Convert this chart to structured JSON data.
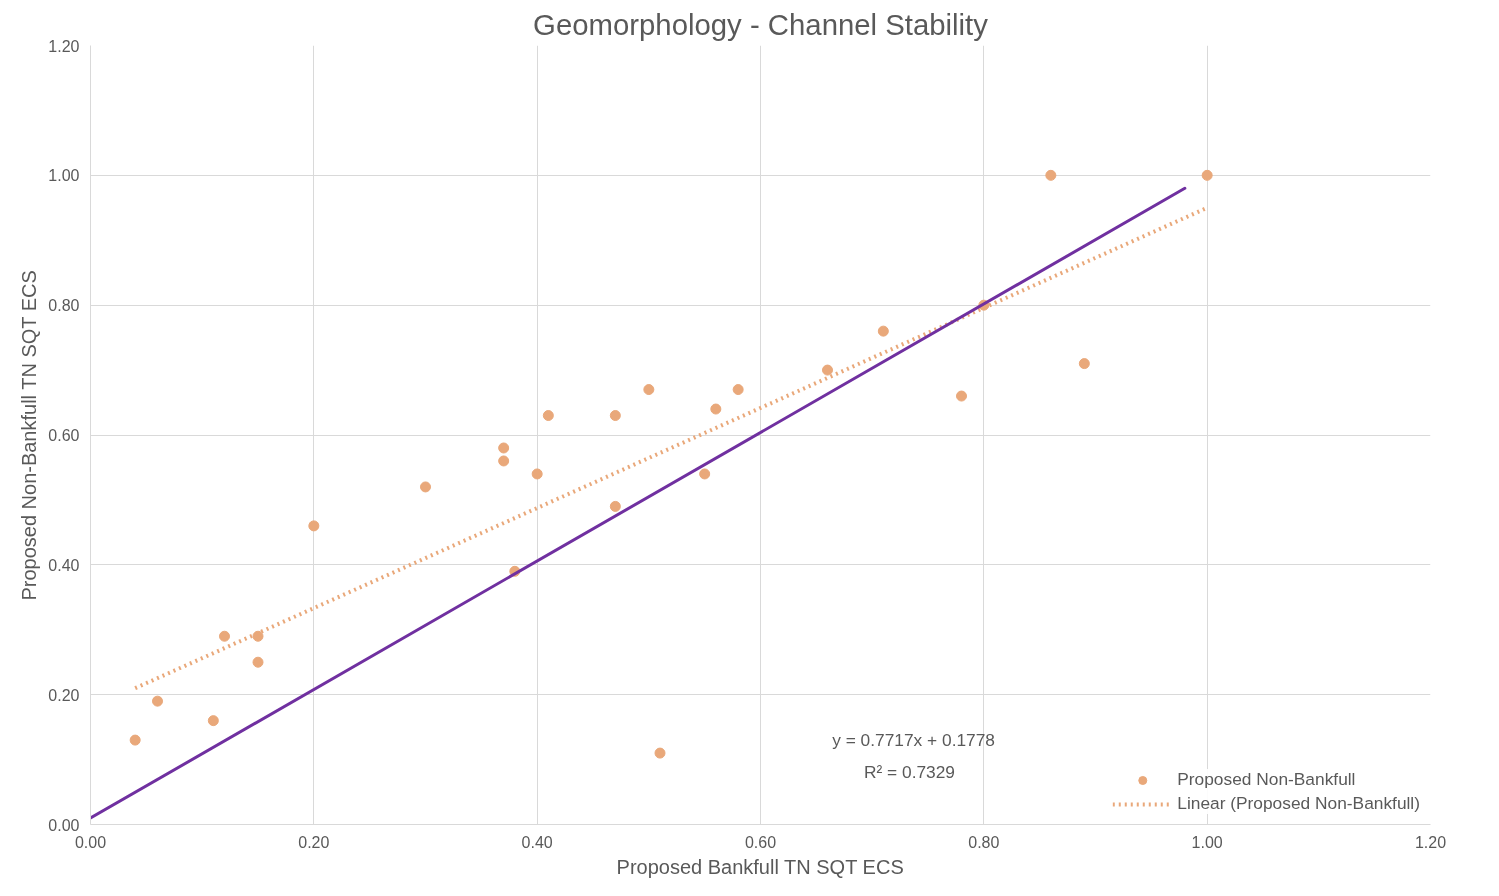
{
  "chart_data": {
    "type": "scatter",
    "title": "Geomorphology - Channel Stability",
    "xlabel": "Proposed Bankfull TN SQT ECS",
    "ylabel": "Proposed Non-Bankfull TN SQT ECS",
    "xlim": [
      0,
      1.2
    ],
    "ylim": [
      0,
      1.2
    ],
    "xticks": [
      {
        "value": 0,
        "label": "0.00"
      },
      {
        "value": 0.2,
        "label": "0.20"
      },
      {
        "value": 0.4,
        "label": "0.40"
      },
      {
        "value": 0.6,
        "label": "0.60"
      },
      {
        "value": 0.8,
        "label": "0.80"
      },
      {
        "value": 1.0,
        "label": "1.00"
      },
      {
        "value": 1.2,
        "label": "1.20"
      }
    ],
    "yticks": [
      {
        "value": 0,
        "label": "0.00"
      },
      {
        "value": 0.2,
        "label": "0.20"
      },
      {
        "value": 0.4,
        "label": "0.40"
      },
      {
        "value": 0.6,
        "label": "0.60"
      },
      {
        "value": 0.8,
        "label": "0.80"
      },
      {
        "value": 1.0,
        "label": "1.00"
      },
      {
        "value": 1.2,
        "label": "1.20"
      }
    ],
    "grid": true,
    "legend": "bottom right",
    "series": [
      {
        "name": "Proposed Non-Bankfull",
        "marker": "circle",
        "color": "#e9a87a",
        "x": [
          0.04,
          0.06,
          0.11,
          0.12,
          0.15,
          0.15,
          0.2,
          0.3,
          0.37,
          0.37,
          0.38,
          0.4,
          0.41,
          0.47,
          0.47,
          0.5,
          0.51,
          0.55,
          0.56,
          0.58,
          0.66,
          0.71,
          0.78,
          0.8,
          0.86,
          0.89,
          1.0
        ],
        "values": [
          0.13,
          0.19,
          0.16,
          0.29,
          0.29,
          0.25,
          0.46,
          0.52,
          0.58,
          0.56,
          0.39,
          0.54,
          0.63,
          0.63,
          0.49,
          0.67,
          0.11,
          0.54,
          0.64,
          0.67,
          0.7,
          0.76,
          0.66,
          0.8,
          1.0,
          0.71,
          1.0
        ]
      },
      {
        "type": "line",
        "name": "Linear (Proposed Non-Bankfull)",
        "color": "#e9a87a",
        "line_style": "dotted",
        "x": [
          0.04,
          1.0
        ],
        "values": [
          0.21,
          0.95
        ]
      },
      {
        "type": "line",
        "color": "#7030a0",
        "line_style": "solid",
        "x": [
          0.0,
          0.98
        ],
        "values": [
          0.01,
          0.98
        ]
      }
    ],
    "annotations": [
      "y = 0.7717x + 0.1778",
      "R² = 0.7329"
    ]
  }
}
